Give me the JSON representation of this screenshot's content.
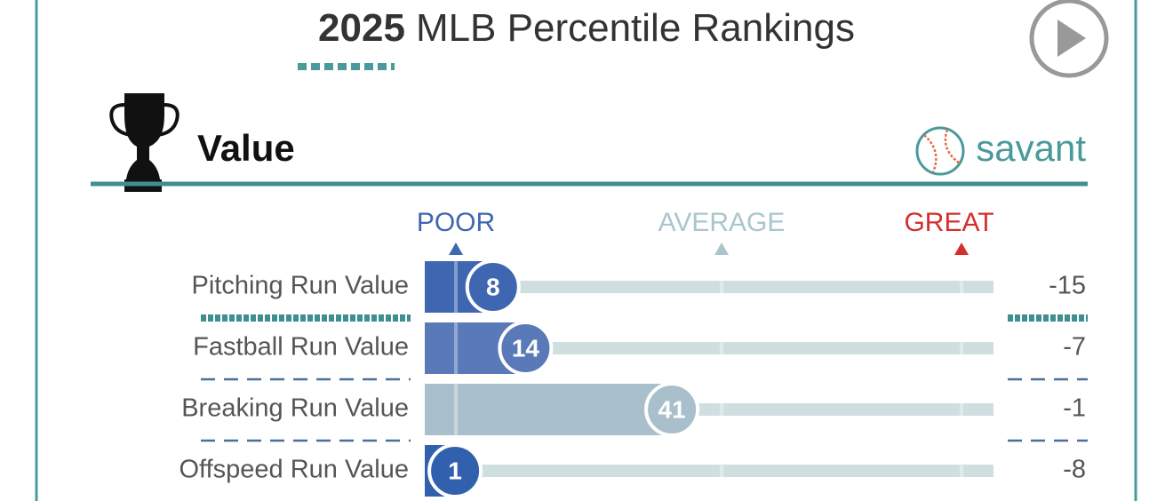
{
  "chart_data": {
    "type": "bar",
    "season": "2025",
    "title": "MLB Percentile Rankings",
    "section": "Value",
    "brand": "savant",
    "scale_labels": [
      "POOR",
      "AVERAGE",
      "GREAT"
    ],
    "categories": [
      "Pitching Run Value",
      "Fastball Run Value",
      "Breaking Run Value",
      "Offspeed Run Value"
    ],
    "values": [
      8,
      14,
      41,
      1
    ],
    "colors": [
      "#3f67b1",
      "#5a79b8",
      "#a9bfcb",
      "#3161ad"
    ],
    "run_values": [
      -15,
      -7,
      -1,
      -8
    ],
    "xlim": [
      0,
      100
    ]
  }
}
